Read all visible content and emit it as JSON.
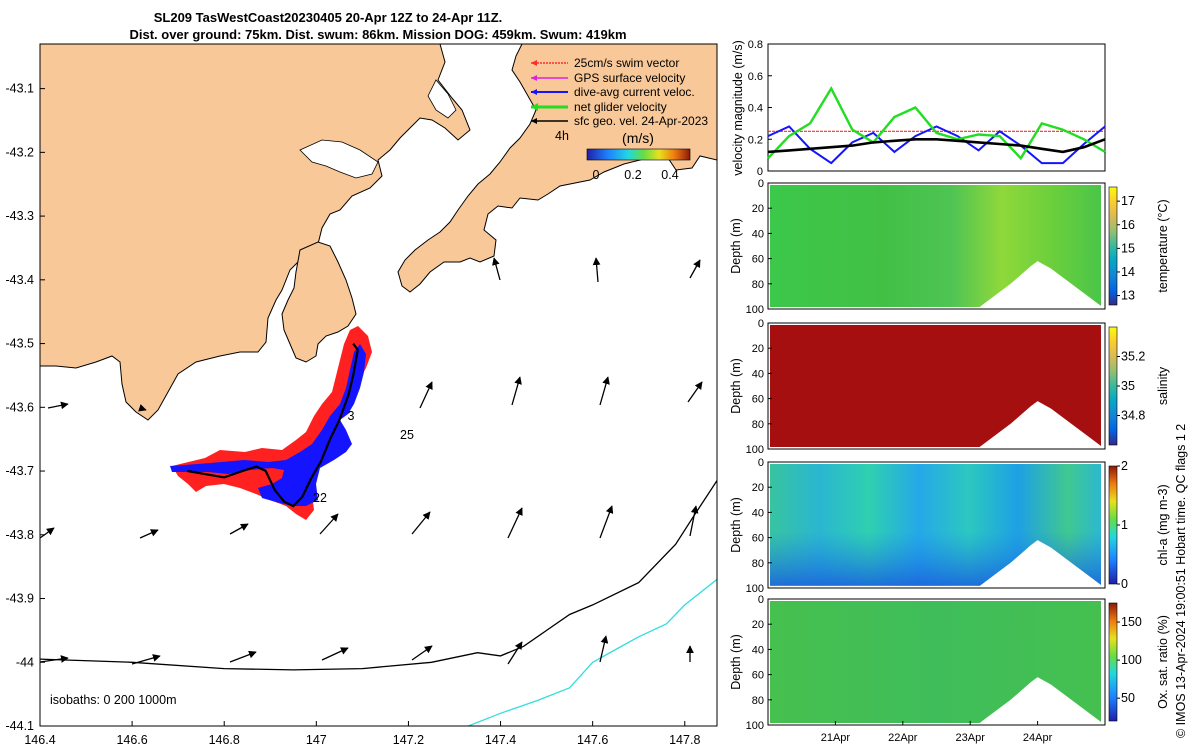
{
  "header": {
    "title_line1": "SL209 TasWestCoast20230405 20-Apr 12Z to 24-Apr 11Z.",
    "title_line2": "Dist. over ground: 75km. Dist. swum: 86km. Mission DOG: 459km. Swum: 419km"
  },
  "side_caption": "© IMOS 13-Apr-2024 19:00:51 Hobart time. QC flags 1  2",
  "colors": {
    "land": "#f9c898",
    "water": "#ffffff",
    "track": "#000000",
    "swim_vector": "#ff2a2a",
    "dive_current": "#1414ff",
    "net_velocity": "#22dd22",
    "geo_vel": "#000000",
    "isobath_200": "#000000",
    "isobath_1000": "#33dddd"
  },
  "map": {
    "legend": [
      {
        "label": "25cm/s swim vector",
        "color": "#ff2a2a"
      },
      {
        "label": "GPS surface velocity",
        "color": "#dd22dd"
      },
      {
        "label": "dive-avg current veloc.",
        "color": "#1414ff"
      },
      {
        "label": "net glider velocity",
        "color": "#22dd22"
      },
      {
        "label": "sfc geo. vel. 24-Apr-2023",
        "color": "#000000"
      }
    ],
    "legend_extra": "4h",
    "colorbar_title": "(m/s)",
    "colorbar_ticks": [
      "0",
      "0.2",
      "0.4"
    ],
    "annotations": [
      "3",
      "25",
      "22"
    ],
    "isobath_note": "isobaths: 0   200  1000m"
  },
  "chart_data": [
    {
      "type": "line",
      "title": "map",
      "xlabel": "",
      "ylabel": "",
      "xlim": [
        146.4,
        147.87
      ],
      "ylim": [
        -44.1,
        -43.03
      ],
      "xticks": [
        146.4,
        146.6,
        146.8,
        147.0,
        147.2,
        147.4,
        147.6,
        147.8
      ],
      "xtick_labels": [
        "146.4",
        "146.6",
        "146.8",
        "147",
        "147.2",
        "147.4",
        "147.6",
        "147.8"
      ],
      "yticks": [
        -43.1,
        -43.2,
        -43.3,
        -43.4,
        -43.5,
        -43.6,
        -43.7,
        -43.8,
        -43.9,
        -44.0,
        -44.1
      ],
      "ytick_labels": [
        "-43.1",
        "-43.2",
        "-43.3",
        "-43.4",
        "-43.5",
        "-43.6",
        "-43.7",
        "-43.8",
        "-43.9",
        "-44",
        "-44.1"
      ],
      "series": [
        {
          "name": "glider track",
          "lon": [
            146.72,
            146.8,
            146.84,
            146.87,
            146.89,
            146.91,
            146.93,
            146.95,
            146.97,
            146.99,
            147.01,
            147.03,
            147.05,
            147.07,
            147.08,
            147.09,
            147.08
          ],
          "lat": [
            -43.7,
            -43.71,
            -43.7,
            -43.693,
            -43.7,
            -43.73,
            -43.748,
            -43.755,
            -43.74,
            -43.71,
            -43.685,
            -43.65,
            -43.62,
            -43.58,
            -43.55,
            -43.51,
            -43.5
          ]
        },
        {
          "name": "200m isobath",
          "lon": [
            146.4,
            146.6,
            146.8,
            146.95,
            147.1,
            147.25,
            147.35,
            147.4,
            147.45,
            147.5,
            147.55,
            147.6,
            147.7,
            147.78,
            147.82,
            147.87
          ],
          "lat": [
            -43.995,
            -44.0,
            -44.01,
            -44.012,
            -44.01,
            -44.0,
            -43.985,
            -43.99,
            -43.975,
            -43.95,
            -43.925,
            -43.91,
            -43.875,
            -43.815,
            -43.77,
            -43.715
          ]
        },
        {
          "name": "1000m isobath",
          "lon": [
            147.33,
            147.4,
            147.48,
            147.55,
            147.6,
            147.65,
            147.7,
            147.76,
            147.8,
            147.87
          ],
          "lat": [
            -44.1,
            -44.08,
            -44.06,
            -44.04,
            -44.0,
            -43.98,
            -43.96,
            -43.94,
            -43.91,
            -43.87
          ]
        }
      ]
    },
    {
      "type": "line",
      "title": "",
      "xlabel": "",
      "ylabel": "velocity magnitude (m/s)",
      "ylim": [
        0,
        0.8
      ],
      "yticks": [
        0,
        0.2,
        0.4,
        0.6,
        0.8
      ],
      "ytick_labels": [
        "0",
        "0.2",
        "0.4",
        "0.6",
        "0.8"
      ],
      "x_days": [
        0,
        0.25,
        0.5,
        0.75,
        1.0,
        1.25,
        1.5,
        1.75,
        2.0,
        2.25,
        2.5,
        2.75,
        3.0,
        3.25,
        3.5,
        3.75,
        4.0
      ],
      "series": [
        {
          "name": "swim vector",
          "values": [
            0.25,
            0.25,
            0.25,
            0.25,
            0.25,
            0.25,
            0.25,
            0.25,
            0.25,
            0.25,
            0.25,
            0.25,
            0.25,
            0.25,
            0.25,
            0.25,
            0.25
          ]
        },
        {
          "name": "dive-avg current",
          "values": [
            0.22,
            0.28,
            0.14,
            0.05,
            0.18,
            0.24,
            0.12,
            0.22,
            0.28,
            0.22,
            0.13,
            0.25,
            0.16,
            0.05,
            0.05,
            0.17,
            0.28
          ]
        },
        {
          "name": "net glider velocity",
          "values": [
            0.08,
            0.22,
            0.3,
            0.52,
            0.26,
            0.18,
            0.34,
            0.4,
            0.24,
            0.2,
            0.23,
            0.22,
            0.08,
            0.3,
            0.26,
            0.2,
            0.12
          ]
        },
        {
          "name": "geo vel",
          "values": [
            0.12,
            0.13,
            0.14,
            0.15,
            0.16,
            0.18,
            0.19,
            0.2,
            0.2,
            0.19,
            0.18,
            0.17,
            0.16,
            0.14,
            0.12,
            0.15,
            0.2
          ]
        }
      ]
    },
    {
      "type": "heatmap",
      "ylabel": "Depth (m)",
      "clabel": "temperature (°C)",
      "ylim": [
        100,
        0
      ],
      "yticks": [
        "0",
        "20",
        "40",
        "60",
        "80",
        "100"
      ],
      "clim": [
        12.6,
        17.6
      ],
      "cticks": [
        "13",
        "14",
        "15",
        "16",
        "17"
      ],
      "cmap": "parula"
    },
    {
      "type": "heatmap",
      "ylabel": "Depth (m)",
      "clabel": "salinity",
      "ylim": [
        100,
        0
      ],
      "yticks": [
        "0",
        "20",
        "40",
        "60",
        "80",
        "100"
      ],
      "clim": [
        34.6,
        35.4
      ],
      "cticks": [
        "34.8",
        "35",
        "35.2"
      ],
      "cmap": "parula"
    },
    {
      "type": "heatmap",
      "ylabel": "Depth (m)",
      "clabel": "chl-a (mg m-3)",
      "ylim": [
        100,
        0
      ],
      "yticks": [
        "0",
        "20",
        "40",
        "60",
        "80",
        "100"
      ],
      "clim": [
        0,
        2
      ],
      "cticks": [
        "0",
        "1",
        "2"
      ],
      "cmap": "parula"
    },
    {
      "type": "heatmap",
      "ylabel": "Depth (m)",
      "clabel": "Ox. sat. ratio (%)",
      "ylim": [
        100,
        0
      ],
      "yticks": [
        "0",
        "20",
        "40",
        "60",
        "80",
        "100"
      ],
      "clim": [
        20,
        175
      ],
      "cticks": [
        "50",
        "100",
        "150"
      ],
      "cmap": "parula",
      "xtick_labels": [
        "21Apr",
        "22Apr",
        "23Apr",
        "24Apr"
      ]
    }
  ]
}
